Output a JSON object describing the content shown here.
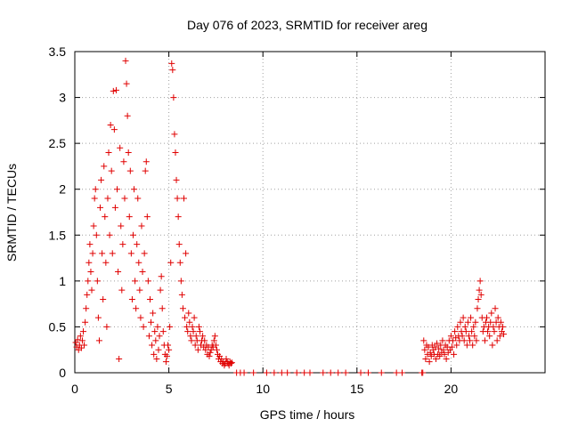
{
  "chart_data": {
    "type": "scatter",
    "title": "Day 076 of 2023, SRMTID for receiver areg",
    "xlabel": "GPS time / hours",
    "ylabel": "SRMTID / TECUs",
    "xlim": [
      0,
      25
    ],
    "ylim": [
      0,
      3.5
    ],
    "xticks": [
      0,
      5,
      10,
      15,
      20
    ],
    "xtick_labels": [
      "0",
      "5",
      "10",
      "15",
      "20"
    ],
    "yticks": [
      0,
      0.5,
      1,
      1.5,
      2,
      2.5,
      3,
      3.5
    ],
    "ytick_labels": [
      "0",
      "0.5",
      "1",
      "1.5",
      "2",
      "2.5",
      "3",
      "3.5"
    ],
    "grid": true,
    "marker": "+",
    "color": "#e00000",
    "series": [
      {
        "name": "areg",
        "points": [
          [
            0.05,
            0.33
          ],
          [
            0.1,
            0.28
          ],
          [
            0.15,
            0.36
          ],
          [
            0.2,
            0.25
          ],
          [
            0.25,
            0.3
          ],
          [
            0.3,
            0.4
          ],
          [
            0.35,
            0.27
          ],
          [
            0.4,
            0.35
          ],
          [
            0.45,
            0.45
          ],
          [
            0.5,
            0.3
          ],
          [
            0.55,
            0.55
          ],
          [
            0.6,
            0.7
          ],
          [
            0.65,
            0.85
          ],
          [
            0.7,
            1.0
          ],
          [
            0.75,
            1.2
          ],
          [
            0.8,
            1.4
          ],
          [
            0.85,
            1.1
          ],
          [
            0.9,
            0.9
          ],
          [
            0.95,
            1.3
          ],
          [
            1.0,
            1.6
          ],
          [
            1.05,
            1.9
          ],
          [
            1.1,
            2.0
          ],
          [
            1.15,
            1.5
          ],
          [
            1.2,
            1.0
          ],
          [
            1.25,
            0.6
          ],
          [
            1.3,
            0.35
          ],
          [
            1.35,
            1.8
          ],
          [
            1.4,
            2.1
          ],
          [
            1.45,
            1.3
          ],
          [
            1.5,
            0.8
          ],
          [
            1.55,
            2.25
          ],
          [
            1.6,
            1.7
          ],
          [
            1.65,
            1.2
          ],
          [
            1.7,
            0.5
          ],
          [
            1.75,
            1.9
          ],
          [
            1.8,
            2.4
          ],
          [
            1.85,
            1.5
          ],
          [
            1.9,
            2.7
          ],
          [
            1.95,
            2.2
          ],
          [
            2.0,
            1.3
          ],
          [
            2.05,
            3.07
          ],
          [
            2.1,
            2.65
          ],
          [
            2.15,
            1.8
          ],
          [
            2.2,
            3.08
          ],
          [
            2.25,
            2.0
          ],
          [
            2.3,
            1.1
          ],
          [
            2.35,
            0.15
          ],
          [
            2.4,
            2.45
          ],
          [
            2.45,
            1.6
          ],
          [
            2.5,
            0.9
          ],
          [
            2.55,
            1.4
          ],
          [
            2.6,
            2.3
          ],
          [
            2.65,
            1.9
          ],
          [
            2.7,
            3.4
          ],
          [
            2.75,
            3.15
          ],
          [
            2.8,
            2.8
          ],
          [
            2.85,
            2.4
          ],
          [
            2.9,
            1.7
          ],
          [
            2.95,
            2.2
          ],
          [
            3.0,
            1.3
          ],
          [
            3.05,
            0.8
          ],
          [
            3.1,
            1.5
          ],
          [
            3.15,
            2.0
          ],
          [
            3.2,
            1.0
          ],
          [
            3.25,
            0.7
          ],
          [
            3.3,
            1.4
          ],
          [
            3.35,
            1.9
          ],
          [
            3.4,
            1.2
          ],
          [
            3.45,
            0.9
          ],
          [
            3.5,
            0.6
          ],
          [
            3.55,
            1.6
          ],
          [
            3.6,
            1.1
          ],
          [
            3.65,
            0.5
          ],
          [
            3.7,
            1.3
          ],
          [
            3.75,
            2.2
          ],
          [
            3.8,
            2.3
          ],
          [
            3.85,
            1.7
          ],
          [
            3.9,
            1.0
          ],
          [
            3.95,
            0.4
          ],
          [
            4.0,
            0.8
          ],
          [
            4.05,
            0.55
          ],
          [
            4.1,
            0.3
          ],
          [
            4.15,
            0.65
          ],
          [
            4.2,
            0.2
          ],
          [
            4.25,
            0.45
          ],
          [
            4.3,
            0.35
          ],
          [
            4.35,
            0.15
          ],
          [
            4.4,
            0.5
          ],
          [
            4.45,
            0.25
          ],
          [
            4.5,
            0.4
          ],
          [
            4.55,
            0.9
          ],
          [
            4.6,
            1.05
          ],
          [
            4.65,
            0.7
          ],
          [
            4.7,
            0.45
          ],
          [
            4.75,
            0.3
          ],
          [
            4.8,
            0.2
          ],
          [
            4.85,
            0.12
          ],
          [
            4.9,
            0.18
          ],
          [
            4.95,
            0.3
          ],
          [
            5.0,
            0.25
          ],
          [
            5.05,
            0.5
          ],
          [
            5.1,
            1.2
          ],
          [
            5.15,
            3.37
          ],
          [
            5.2,
            3.3
          ],
          [
            5.25,
            3.0
          ],
          [
            5.3,
            2.6
          ],
          [
            5.35,
            2.4
          ],
          [
            5.4,
            2.1
          ],
          [
            5.45,
            1.9
          ],
          [
            5.5,
            1.7
          ],
          [
            5.55,
            1.4
          ],
          [
            5.6,
            1.2
          ],
          [
            5.65,
            1.0
          ],
          [
            5.7,
            0.85
          ],
          [
            5.75,
            0.7
          ],
          [
            5.8,
            1.9
          ],
          [
            5.85,
            0.6
          ],
          [
            5.9,
            1.3
          ],
          [
            5.95,
            0.5
          ],
          [
            6.0,
            0.45
          ],
          [
            6.05,
            0.65
          ],
          [
            6.1,
            0.55
          ],
          [
            6.15,
            0.4
          ],
          [
            6.2,
            0.35
          ],
          [
            6.25,
            0.5
          ],
          [
            6.3,
            0.45
          ],
          [
            6.35,
            0.6
          ],
          [
            6.4,
            0.3
          ],
          [
            6.45,
            0.4
          ],
          [
            6.5,
            0.35
          ],
          [
            6.55,
            0.25
          ],
          [
            6.6,
            0.5
          ],
          [
            6.65,
            0.45
          ],
          [
            6.7,
            0.3
          ],
          [
            6.75,
            0.35
          ],
          [
            6.8,
            0.4
          ],
          [
            6.85,
            0.28
          ],
          [
            6.9,
            0.35
          ],
          [
            6.95,
            0.25
          ],
          [
            7.0,
            0.3
          ],
          [
            7.05,
            0.2
          ],
          [
            7.1,
            0.28
          ],
          [
            7.15,
            0.18
          ],
          [
            7.2,
            0.22
          ],
          [
            7.25,
            0.25
          ],
          [
            7.3,
            0.3
          ],
          [
            7.35,
            0.28
          ],
          [
            7.4,
            0.35
          ],
          [
            7.45,
            0.4
          ],
          [
            7.5,
            0.3
          ],
          [
            7.55,
            0.25
          ],
          [
            7.6,
            0.2
          ],
          [
            7.65,
            0.15
          ],
          [
            7.7,
            0.18
          ],
          [
            7.75,
            0.12
          ],
          [
            7.8,
            0.15
          ],
          [
            7.85,
            0.1
          ],
          [
            7.9,
            0.12
          ],
          [
            7.95,
            0.08
          ],
          [
            8.0,
            0.1
          ],
          [
            8.05,
            0.15
          ],
          [
            8.1,
            0.12
          ],
          [
            8.15,
            0.1
          ],
          [
            8.2,
            0.08
          ],
          [
            8.25,
            0.12
          ],
          [
            8.3,
            0.1
          ],
          [
            8.35,
            0.11
          ],
          [
            8.6,
            0.0
          ],
          [
            8.8,
            0.0
          ],
          [
            9.0,
            0.0
          ],
          [
            9.5,
            0.0
          ],
          [
            10.2,
            0.0
          ],
          [
            10.6,
            0.0
          ],
          [
            11.0,
            0.0
          ],
          [
            11.3,
            0.0
          ],
          [
            11.8,
            0.0
          ],
          [
            12.2,
            0.0
          ],
          [
            12.5,
            0.0
          ],
          [
            13.2,
            0.0
          ],
          [
            13.6,
            0.0
          ],
          [
            14.0,
            0.0
          ],
          [
            14.4,
            0.0
          ],
          [
            15.2,
            0.0
          ],
          [
            15.6,
            0.0
          ],
          [
            16.3,
            0.0
          ],
          [
            17.1,
            0.0
          ],
          [
            17.4,
            0.0
          ],
          [
            18.45,
            0.0
          ],
          [
            18.5,
            0.0
          ],
          [
            18.55,
            0.35
          ],
          [
            18.6,
            0.25
          ],
          [
            18.65,
            0.15
          ],
          [
            18.7,
            0.3
          ],
          [
            18.75,
            0.2
          ],
          [
            18.8,
            0.28
          ],
          [
            18.85,
            0.12
          ],
          [
            18.9,
            0.22
          ],
          [
            18.95,
            0.18
          ],
          [
            19.0,
            0.3
          ],
          [
            19.05,
            0.25
          ],
          [
            19.1,
            0.2
          ],
          [
            19.15,
            0.28
          ],
          [
            19.2,
            0.15
          ],
          [
            19.25,
            0.32
          ],
          [
            19.3,
            0.2
          ],
          [
            19.35,
            0.26
          ],
          [
            19.4,
            0.18
          ],
          [
            19.45,
            0.3
          ],
          [
            19.5,
            0.22
          ],
          [
            19.55,
            0.35
          ],
          [
            19.6,
            0.25
          ],
          [
            19.65,
            0.2
          ],
          [
            19.7,
            0.3
          ],
          [
            19.75,
            0.15
          ],
          [
            19.8,
            0.28
          ],
          [
            19.85,
            0.22
          ],
          [
            19.9,
            0.35
          ],
          [
            19.95,
            0.25
          ],
          [
            20.0,
            0.4
          ],
          [
            20.05,
            0.28
          ],
          [
            20.1,
            0.35
          ],
          [
            20.15,
            0.2
          ],
          [
            20.2,
            0.45
          ],
          [
            20.25,
            0.38
          ],
          [
            20.3,
            0.3
          ],
          [
            20.35,
            0.5
          ],
          [
            20.4,
            0.4
          ],
          [
            20.45,
            0.35
          ],
          [
            20.5,
            0.55
          ],
          [
            20.55,
            0.45
          ],
          [
            20.6,
            0.4
          ],
          [
            20.65,
            0.6
          ],
          [
            20.7,
            0.35
          ],
          [
            20.75,
            0.5
          ],
          [
            20.8,
            0.45
          ],
          [
            20.85,
            0.3
          ],
          [
            20.9,
            0.55
          ],
          [
            20.95,
            0.4
          ],
          [
            21.0,
            0.35
          ],
          [
            21.05,
            0.6
          ],
          [
            21.1,
            0.45
          ],
          [
            21.15,
            0.3
          ],
          [
            21.2,
            0.5
          ],
          [
            21.25,
            0.4
          ],
          [
            21.3,
            0.55
          ],
          [
            21.35,
            0.35
          ],
          [
            21.4,
            0.7
          ],
          [
            21.45,
            0.8
          ],
          [
            21.5,
            0.9
          ],
          [
            21.55,
            1.0
          ],
          [
            21.6,
            0.85
          ],
          [
            21.65,
            0.6
          ],
          [
            21.7,
            0.45
          ],
          [
            21.75,
            0.5
          ],
          [
            21.8,
            0.35
          ],
          [
            21.85,
            0.55
          ],
          [
            21.9,
            0.6
          ],
          [
            21.95,
            0.45
          ],
          [
            22.0,
            0.5
          ],
          [
            22.05,
            0.4
          ],
          [
            22.1,
            0.55
          ],
          [
            22.15,
            0.65
          ],
          [
            22.2,
            0.3
          ],
          [
            22.25,
            0.5
          ],
          [
            22.3,
            0.45
          ],
          [
            22.35,
            0.7
          ],
          [
            22.4,
            0.55
          ],
          [
            22.45,
            0.35
          ],
          [
            22.5,
            0.6
          ],
          [
            22.55,
            0.5
          ],
          [
            22.6,
            0.4
          ],
          [
            22.65,
            0.55
          ],
          [
            22.7,
            0.45
          ],
          [
            22.75,
            0.5
          ],
          [
            22.8,
            0.42
          ]
        ]
      }
    ]
  }
}
